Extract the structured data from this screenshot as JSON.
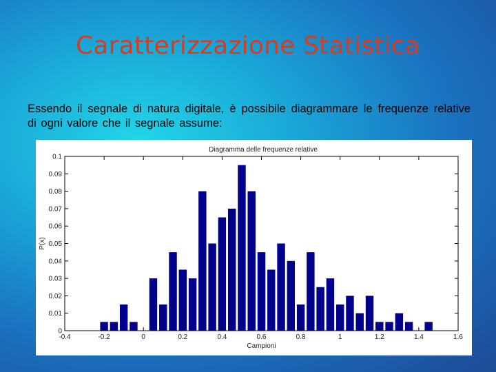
{
  "slide": {
    "title": "Caratterizzazione Statistica",
    "body": "Essendo il segnale di natura digitale, è possibile diagrammare le frequenze relative di ogni valore che il segnale assume:"
  },
  "chart_data": {
    "type": "bar",
    "title": "Diagramma delle frequenze relative",
    "xlabel": "Campioni",
    "ylabel": "P(x)",
    "xlim": [
      -0.4,
      1.6
    ],
    "ylim": [
      0,
      0.1
    ],
    "xticks": [
      "-0.4",
      "-0.2",
      "0",
      "0.2",
      "0.4",
      "0.6",
      "0.8",
      "1",
      "1.2",
      "1.4",
      "1.6"
    ],
    "yticks": [
      "0",
      "0.01",
      "0.02",
      "0.03",
      "0.04",
      "0.05",
      "0.06",
      "0.07",
      "0.08",
      "0.09",
      "0.1"
    ],
    "bar_color": "#00008b",
    "grid": false,
    "x": [
      -0.2,
      -0.15,
      -0.1,
      -0.05,
      0.05,
      0.1,
      0.15,
      0.2,
      0.25,
      0.3,
      0.35,
      0.4,
      0.45,
      0.5,
      0.55,
      0.6,
      0.65,
      0.7,
      0.75,
      0.8,
      0.85,
      0.9,
      0.95,
      1.0,
      1.05,
      1.1,
      1.15,
      1.2,
      1.25,
      1.3,
      1.35,
      1.45
    ],
    "values": [
      0.005,
      0.005,
      0.015,
      0.005,
      0.03,
      0.015,
      0.045,
      0.035,
      0.03,
      0.08,
      0.05,
      0.065,
      0.07,
      0.095,
      0.08,
      0.045,
      0.035,
      0.05,
      0.04,
      0.015,
      0.045,
      0.025,
      0.03,
      0.015,
      0.02,
      0.01,
      0.02,
      0.005,
      0.005,
      0.01,
      0.005,
      0.005
    ]
  }
}
